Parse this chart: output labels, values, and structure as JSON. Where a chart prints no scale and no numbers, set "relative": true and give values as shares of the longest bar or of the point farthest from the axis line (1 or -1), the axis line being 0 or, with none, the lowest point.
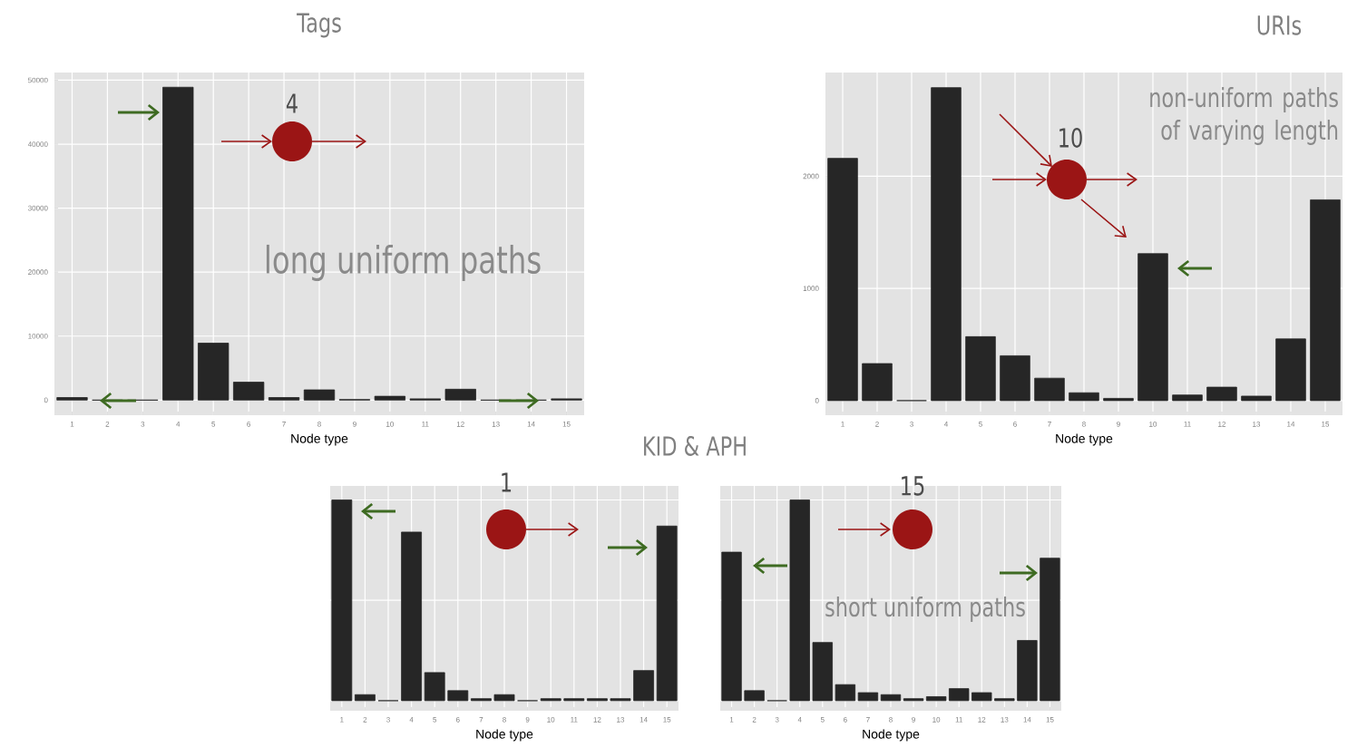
{
  "chart_data": [
    {
      "type": "bar",
      "title": "Tags",
      "xlabel": "Node type",
      "categories": [
        "1",
        "2",
        "3",
        "4",
        "5",
        "6",
        "7",
        "8",
        "9",
        "10",
        "11",
        "12",
        "13",
        "14",
        "15"
      ],
      "values": [
        400,
        0,
        0,
        48900,
        8900,
        2800,
        400,
        1600,
        100,
        600,
        200,
        1700,
        0,
        0,
        200
      ],
      "color": "#262626",
      "ylim": [
        -2360,
        51200
      ],
      "yticks": [
        0,
        10000,
        20000,
        30000,
        40000,
        50000
      ],
      "grid": true,
      "annotations": [
        "4",
        "long uniform paths"
      ]
    },
    {
      "type": "bar",
      "title": "URIs",
      "xlabel": "Node type",
      "categories": [
        "1",
        "2",
        "3",
        "4",
        "5",
        "6",
        "7",
        "8",
        "9",
        "10",
        "11",
        "12",
        "13",
        "14",
        "15"
      ],
      "values": [
        2160,
        330,
        0,
        2790,
        570,
        400,
        200,
        70,
        20,
        1310,
        50,
        120,
        40,
        550,
        1790
      ],
      "color": "#262626",
      "ylim": [
        -130,
        2925
      ],
      "yticks": [
        0,
        1000,
        2000
      ],
      "grid": true,
      "annotations": [
        "10",
        "non-uniform paths of varying length"
      ]
    },
    {
      "type": "bar",
      "title": "KID & APH",
      "xlabel": "Node type",
      "categories": [
        "1",
        "2",
        "3",
        "4",
        "5",
        "6",
        "7",
        "8",
        "9",
        "10",
        "11",
        "12",
        "13",
        "14",
        "15"
      ],
      "values": [
        1,
        0.03,
        0,
        0.84,
        0.14,
        0.05,
        0.01,
        0.03,
        0,
        0.01,
        0.01,
        0.01,
        0.01,
        0.15,
        0.87
      ],
      "color": "#262626",
      "relative": true,
      "grid": true,
      "annotations": [
        "1"
      ]
    },
    {
      "type": "bar",
      "xlabel": "Node type",
      "categories": [
        "1",
        "2",
        "3",
        "4",
        "5",
        "6",
        "7",
        "8",
        "9",
        "10",
        "11",
        "12",
        "13",
        "14",
        "15"
      ],
      "values": [
        0.74,
        0.05,
        0,
        1,
        0.29,
        0.08,
        0.04,
        0.03,
        0.01,
        0.02,
        0.06,
        0.04,
        0.01,
        0.3,
        0.71
      ],
      "color": "#262626",
      "relative": true,
      "grid": true,
      "annotations": [
        "15",
        "short uniform paths"
      ]
    }
  ]
}
